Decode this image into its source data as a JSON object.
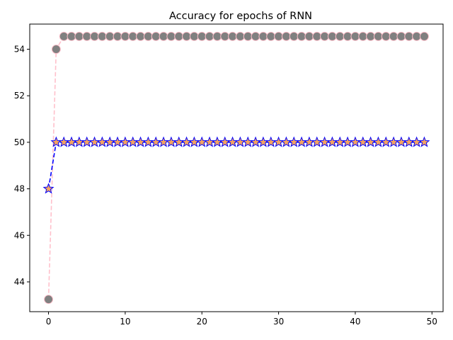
{
  "chart_data": {
    "type": "line",
    "title": "Accuracy for epochs of RNN",
    "xlabel": "",
    "ylabel": "",
    "xlim": [
      -2.45,
      51.45
    ],
    "ylim": [
      42.72,
      55.08
    ],
    "xticks": [
      0,
      10,
      20,
      30,
      40,
      50
    ],
    "yticks": [
      44,
      46,
      48,
      50,
      52,
      54
    ],
    "grid": false,
    "x": [
      0,
      1,
      2,
      3,
      4,
      5,
      6,
      7,
      8,
      9,
      10,
      11,
      12,
      13,
      14,
      15,
      16,
      17,
      18,
      19,
      20,
      21,
      22,
      23,
      24,
      25,
      26,
      27,
      28,
      29,
      30,
      31,
      32,
      33,
      34,
      35,
      36,
      37,
      38,
      39,
      40,
      41,
      42,
      43,
      44,
      45,
      46,
      47,
      48,
      49
    ],
    "series": [
      {
        "values": [
          43.25,
          54.0,
          54.55,
          54.55,
          54.55,
          54.55,
          54.55,
          54.55,
          54.55,
          54.55,
          54.55,
          54.55,
          54.55,
          54.55,
          54.55,
          54.55,
          54.55,
          54.55,
          54.55,
          54.55,
          54.55,
          54.55,
          54.55,
          54.55,
          54.55,
          54.55,
          54.55,
          54.55,
          54.55,
          54.55,
          54.55,
          54.55,
          54.55,
          54.55,
          54.55,
          54.55,
          54.55,
          54.55,
          54.55,
          54.55,
          54.55,
          54.55,
          54.55,
          54.55,
          54.55,
          54.55,
          54.55,
          54.55,
          54.55,
          54.55
        ],
        "line_color": "#ffc0cb",
        "marker": "circle",
        "marker_fill": "#808080",
        "marker_edge": "#ffc0cb"
      },
      {
        "values": [
          48.0,
          50.0,
          50.0,
          50.0,
          50.0,
          50.0,
          50.0,
          50.0,
          50.0,
          50.0,
          50.0,
          50.0,
          50.0,
          50.0,
          50.0,
          50.0,
          50.0,
          50.0,
          50.0,
          50.0,
          50.0,
          50.0,
          50.0,
          50.0,
          50.0,
          50.0,
          50.0,
          50.0,
          50.0,
          50.0,
          50.0,
          50.0,
          50.0,
          50.0,
          50.0,
          50.0,
          50.0,
          50.0,
          50.0,
          50.0,
          50.0,
          50.0,
          50.0,
          50.0,
          50.0,
          50.0,
          50.0,
          50.0,
          50.0,
          50.0
        ],
        "line_color": "#0000ff",
        "marker": "star",
        "marker_fill": "#f4a460",
        "marker_edge": "#0000ff"
      }
    ]
  }
}
